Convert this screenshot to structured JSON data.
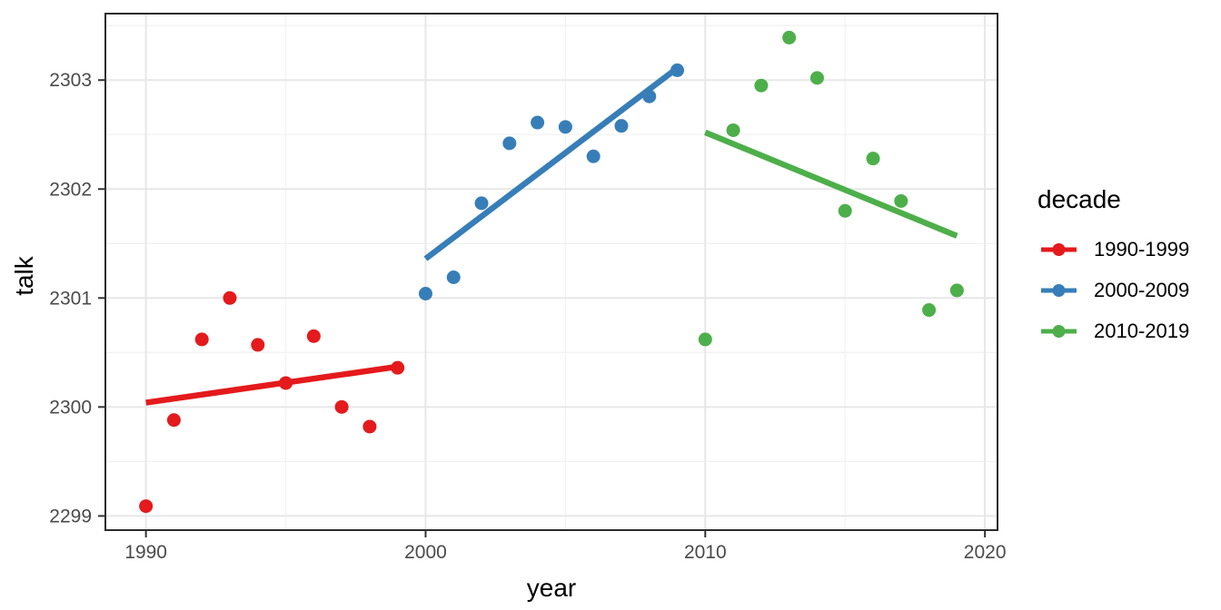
{
  "chart_data": {
    "type": "scatter",
    "title": "",
    "xlabel": "year",
    "ylabel": "talk",
    "xlim": [
      1988.55,
      2020.45
    ],
    "ylim": [
      2298.87,
      2303.61
    ],
    "x_ticks": [
      1990,
      2000,
      2010,
      2020
    ],
    "x_tick_labels": [
      "1990",
      "2000",
      "2010",
      "2020"
    ],
    "x_minor_ticks": [
      1995,
      2005,
      2015
    ],
    "y_ticks": [
      2299,
      2300,
      2301,
      2302,
      2303
    ],
    "y_tick_labels": [
      "2299",
      "2300",
      "2301",
      "2302",
      "2303"
    ],
    "y_minor_ticks": [
      2299.5,
      2300.5,
      2301.5,
      2302.5,
      2303.5
    ],
    "grid": "major+minor",
    "legend_position": "right",
    "legend_title": "decade",
    "series": [
      {
        "name": "1990-1999",
        "color": "#E41A1C",
        "x": [
          1990,
          1991,
          1992,
          1993,
          1994,
          1995,
          1996,
          1997,
          1998,
          1999
        ],
        "y": [
          2299.09,
          2299.88,
          2300.62,
          2301.0,
          2300.57,
          2300.22,
          2300.65,
          2300.0,
          2299.82,
          2300.36
        ],
        "trend": {
          "x1": 1990,
          "y1": 2300.04,
          "x2": 1999,
          "y2": 2300.37
        }
      },
      {
        "name": "2000-2009",
        "color": "#377EB8",
        "x": [
          2000,
          2001,
          2002,
          2003,
          2004,
          2005,
          2006,
          2007,
          2008,
          2009
        ],
        "y": [
          2301.04,
          2301.19,
          2301.87,
          2302.42,
          2302.61,
          2302.57,
          2302.3,
          2302.58,
          2302.85,
          2303.09
        ],
        "trend": {
          "x1": 2000,
          "y1": 2301.36,
          "x2": 2009,
          "y2": 2303.11
        }
      },
      {
        "name": "2010-2019",
        "color": "#4DAF4A",
        "x": [
          2010,
          2011,
          2012,
          2013,
          2014,
          2015,
          2016,
          2017,
          2018,
          2019
        ],
        "y": [
          2300.62,
          2302.54,
          2302.95,
          2303.39,
          2303.02,
          2301.8,
          2302.28,
          2301.89,
          2300.89,
          2301.07
        ],
        "trend": {
          "x1": 2010,
          "y1": 2302.52,
          "x2": 2019,
          "y2": 2301.57
        }
      }
    ],
    "style": {
      "grid_major_color": "#e7e7e7",
      "grid_minor_color": "#f2f2f2",
      "panel_border_color": "#2b2b2b",
      "tick_mark_color": "#333333",
      "tick_label_color": "#4a4a4a",
      "background_color": "#ffffff"
    }
  }
}
